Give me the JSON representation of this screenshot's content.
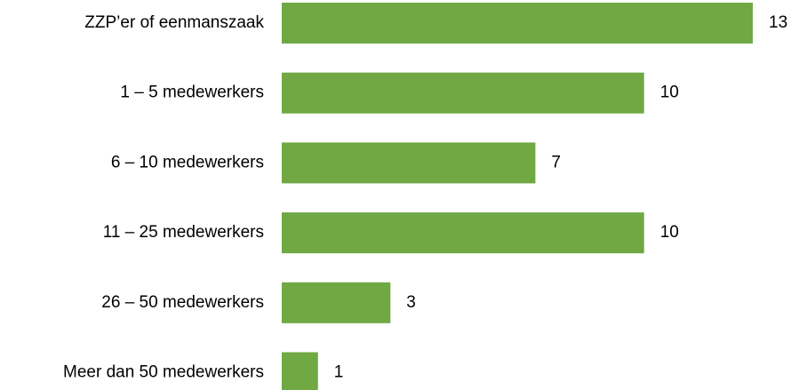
{
  "chart_data": {
    "type": "bar",
    "orientation": "horizontal",
    "categories": [
      "ZZP’er of eenmanszaak",
      "1 – 5 medewerkers",
      "6 – 10 medewerkers",
      "11 – 25 medewerkers",
      "26 – 50 medewerkers",
      "Meer dan 50 medewerkers"
    ],
    "values": [
      13,
      10,
      7,
      10,
      3,
      1
    ],
    "color": "#70a844"
  }
}
